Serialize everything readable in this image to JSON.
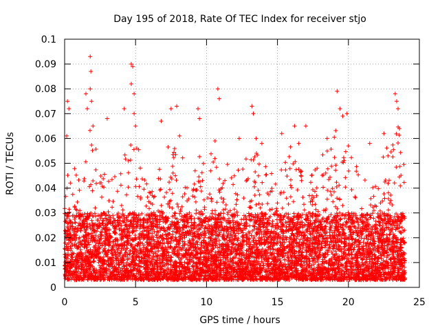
{
  "chart_data": {
    "type": "scatter",
    "title": "Day 195 of 2018, Rate Of TEC Index for receiver stjo",
    "xlabel": "GPS time / hours",
    "ylabel": "ROTI / TECUs",
    "xlim": [
      0,
      25
    ],
    "ylim": [
      0,
      0.1
    ],
    "grid": true,
    "marker": "+",
    "color": "#ff0000",
    "x_ticks": [
      0,
      5,
      10,
      15,
      20,
      25
    ],
    "x_tick_labels": [
      "0",
      "5",
      "10",
      "15",
      "20",
      "25"
    ],
    "y_ticks": [
      0,
      0.01,
      0.02,
      0.03,
      0.04,
      0.05,
      0.06,
      0.07,
      0.08,
      0.09,
      0.1
    ],
    "y_tick_labels": [
      "0",
      "0.01",
      "0.02",
      "0.03",
      "0.04",
      "0.05",
      "0.06",
      "0.07",
      "0.08",
      "0.09",
      "0.1"
    ],
    "data_range_hours": [
      0,
      24
    ],
    "series": [
      {
        "name": "ROTI",
        "point_count_estimate": 9000,
        "typical_range": [
          0.003,
          0.03
        ],
        "envelope_x": [
          0,
          1,
          1.5,
          2,
          2.5,
          3,
          4,
          4.5,
          5,
          6,
          7,
          7.5,
          8,
          9,
          9.5,
          10,
          10.5,
          11,
          12,
          12.5,
          13,
          13.5,
          14,
          15,
          15.5,
          16,
          16.5,
          17,
          18,
          18.5,
          19,
          19.5,
          20,
          21,
          21.5,
          22,
          22.5,
          23,
          23.5,
          24
        ],
        "envelope_y": [
          0.045,
          0.05,
          0.06,
          0.07,
          0.055,
          0.045,
          0.05,
          0.065,
          0.06,
          0.045,
          0.055,
          0.06,
          0.06,
          0.045,
          0.06,
          0.05,
          0.065,
          0.055,
          0.045,
          0.05,
          0.06,
          0.06,
          0.05,
          0.045,
          0.055,
          0.06,
          0.055,
          0.045,
          0.05,
          0.06,
          0.065,
          0.06,
          0.055,
          0.045,
          0.04,
          0.045,
          0.055,
          0.06,
          0.065,
          0.05
        ],
        "spikes": [
          {
            "x": 0.2,
            "y": 0.075
          },
          {
            "x": 0.3,
            "y": 0.072
          },
          {
            "x": 0.15,
            "y": 0.061
          },
          {
            "x": 1.5,
            "y": 0.078
          },
          {
            "x": 1.6,
            "y": 0.072
          },
          {
            "x": 1.8,
            "y": 0.093
          },
          {
            "x": 1.85,
            "y": 0.087
          },
          {
            "x": 1.8,
            "y": 0.08
          },
          {
            "x": 1.9,
            "y": 0.075
          },
          {
            "x": 2.0,
            "y": 0.065
          },
          {
            "x": 3.0,
            "y": 0.068
          },
          {
            "x": 4.2,
            "y": 0.072
          },
          {
            "x": 4.7,
            "y": 0.09
          },
          {
            "x": 4.8,
            "y": 0.089
          },
          {
            "x": 4.7,
            "y": 0.082
          },
          {
            "x": 4.9,
            "y": 0.078
          },
          {
            "x": 4.9,
            "y": 0.07
          },
          {
            "x": 5.0,
            "y": 0.065
          },
          {
            "x": 6.8,
            "y": 0.067
          },
          {
            "x": 7.5,
            "y": 0.072
          },
          {
            "x": 7.9,
            "y": 0.073
          },
          {
            "x": 8.1,
            "y": 0.061
          },
          {
            "x": 9.4,
            "y": 0.072
          },
          {
            "x": 9.5,
            "y": 0.068
          },
          {
            "x": 10.8,
            "y": 0.08
          },
          {
            "x": 10.9,
            "y": 0.076
          },
          {
            "x": 10.6,
            "y": 0.059
          },
          {
            "x": 12.3,
            "y": 0.06
          },
          {
            "x": 13.2,
            "y": 0.073
          },
          {
            "x": 13.3,
            "y": 0.07
          },
          {
            "x": 13.5,
            "y": 0.06
          },
          {
            "x": 13.9,
            "y": 0.058
          },
          {
            "x": 15.3,
            "y": 0.062
          },
          {
            "x": 16.2,
            "y": 0.065
          },
          {
            "x": 16.5,
            "y": 0.058
          },
          {
            "x": 17.0,
            "y": 0.065
          },
          {
            "x": 18.5,
            "y": 0.06
          },
          {
            "x": 19.2,
            "y": 0.079
          },
          {
            "x": 19.4,
            "y": 0.072
          },
          {
            "x": 19.6,
            "y": 0.069
          },
          {
            "x": 19.9,
            "y": 0.07
          },
          {
            "x": 20.0,
            "y": 0.057
          },
          {
            "x": 21.5,
            "y": 0.058
          },
          {
            "x": 22.5,
            "y": 0.062
          },
          {
            "x": 23.3,
            "y": 0.078
          },
          {
            "x": 23.4,
            "y": 0.075
          },
          {
            "x": 23.5,
            "y": 0.072
          },
          {
            "x": 23.6,
            "y": 0.064
          }
        ]
      }
    ]
  }
}
